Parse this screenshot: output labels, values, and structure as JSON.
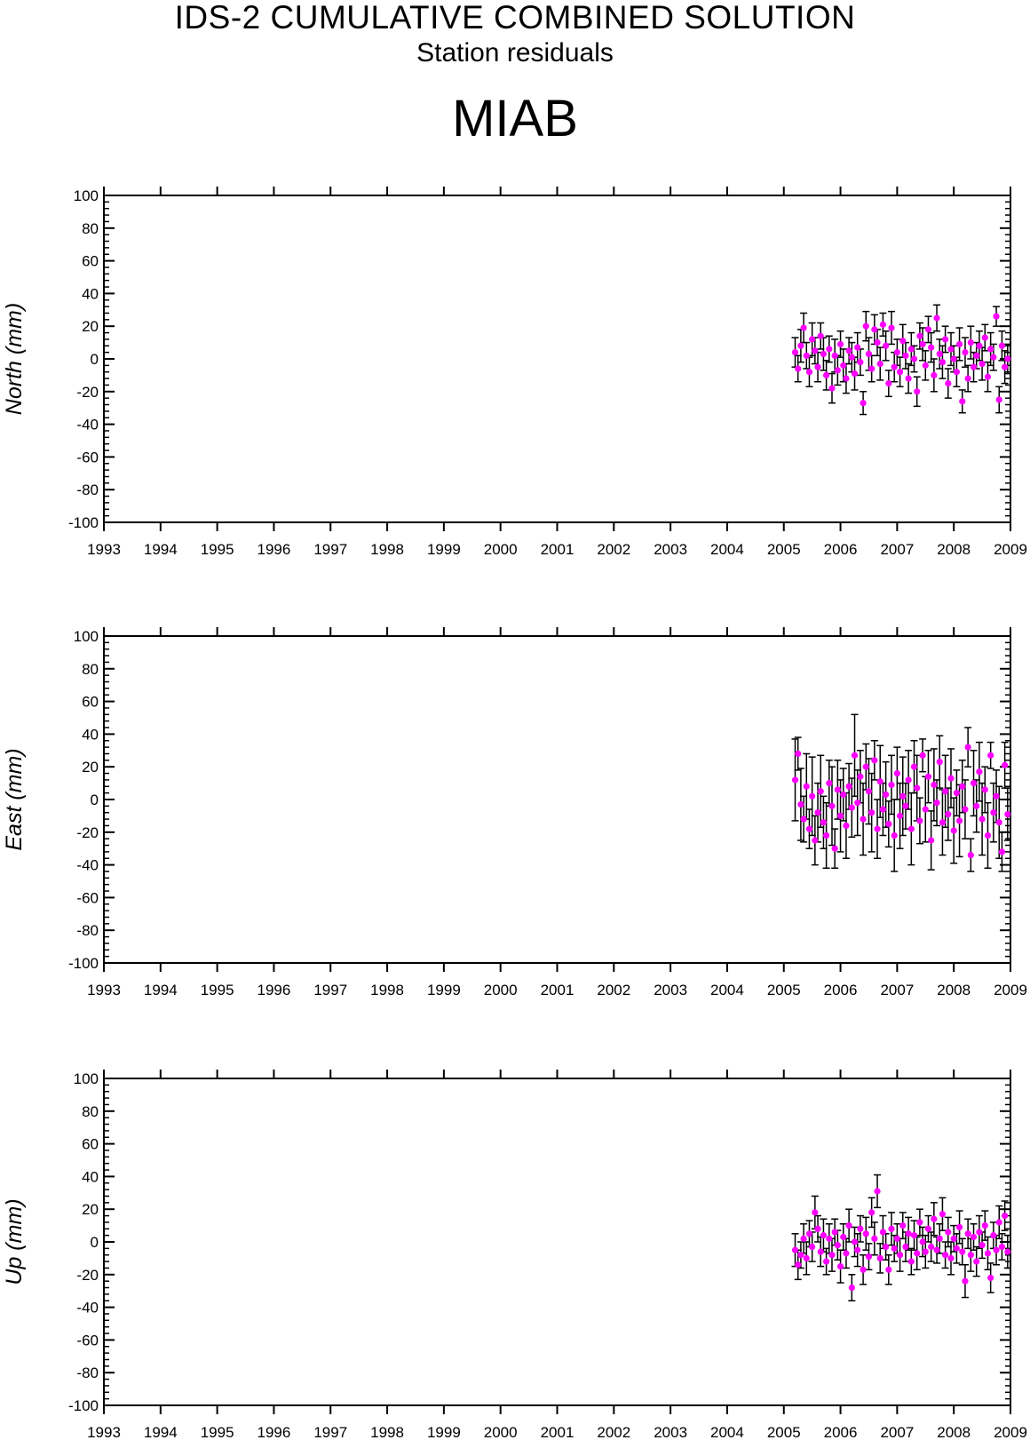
{
  "header": {
    "title": "IDS-2 CUMULATIVE COMBINED SOLUTION",
    "subtitle": "Station residuals",
    "station": "MIAB"
  },
  "colors": {
    "point": "#ff00ff",
    "errorbar": "#000000",
    "axis": "#000000"
  },
  "chart_data": [
    {
      "type": "scatter",
      "ylabel": "North (mm)",
      "ylim": [
        -100,
        100
      ],
      "xlim": [
        1993,
        2009
      ],
      "yticks": [
        "100",
        "80",
        "60",
        "40",
        "20",
        "0",
        "-20",
        "-40",
        "-60",
        "-80",
        "-100"
      ],
      "xticks": [
        "1993",
        "1994",
        "1995",
        "1996",
        "1997",
        "1998",
        "1999",
        "2000",
        "2001",
        "2002",
        "2003",
        "2004",
        "2005",
        "2006",
        "2007",
        "2008",
        "2009"
      ],
      "series": [
        {
          "errorbar": true,
          "x": [
            2005.2,
            2005.25,
            2005.3,
            2005.35,
            2005.4,
            2005.45,
            2005.5,
            2005.55,
            2005.6,
            2005.65,
            2005.7,
            2005.75,
            2005.8,
            2005.85,
            2005.9,
            2005.95,
            2006.0,
            2006.05,
            2006.1,
            2006.15,
            2006.2,
            2006.25,
            2006.3,
            2006.35,
            2006.4,
            2006.45,
            2006.5,
            2006.55,
            2006.6,
            2006.65,
            2006.7,
            2006.75,
            2006.8,
            2006.85,
            2006.9,
            2006.95,
            2007.0,
            2007.05,
            2007.1,
            2007.15,
            2007.2,
            2007.25,
            2007.3,
            2007.35,
            2007.4,
            2007.45,
            2007.5,
            2007.55,
            2007.6,
            2007.65,
            2007.7,
            2007.75,
            2007.8,
            2007.85,
            2007.9,
            2007.95,
            2008.0,
            2008.05,
            2008.1,
            2008.15,
            2008.2,
            2008.25,
            2008.3,
            2008.35,
            2008.4,
            2008.45,
            2008.5,
            2008.55,
            2008.6,
            2008.65,
            2008.7,
            2008.75,
            2008.8,
            2008.85,
            2008.9,
            2008.95
          ],
          "y": [
            4,
            -6,
            8,
            19,
            2,
            -8,
            12,
            5,
            -5,
            14,
            3,
            -10,
            6,
            -18,
            2,
            -7,
            9,
            -4,
            -12,
            5,
            1,
            -9,
            7,
            -2,
            -27,
            20,
            3,
            -6,
            18,
            10,
            -3,
            21,
            8,
            -15,
            19,
            -5,
            4,
            -8,
            11,
            2,
            -12,
            6,
            0,
            -20,
            14,
            9,
            -4,
            18,
            7,
            -10,
            25,
            3,
            -2,
            12,
            -15,
            6,
            0,
            -8,
            9,
            -26,
            4,
            -12,
            10,
            -5,
            2,
            8,
            -3,
            13,
            -11,
            6,
            1,
            26,
            -25,
            8,
            -5,
            0
          ],
          "err": [
            9,
            8,
            10,
            9,
            8,
            9,
            10,
            8,
            9,
            8,
            10,
            9,
            8,
            9,
            10,
            9,
            8,
            10,
            9,
            8,
            9,
            10,
            9,
            8,
            7,
            9,
            10,
            8,
            9,
            8,
            10,
            7,
            9,
            8,
            10,
            9,
            8,
            9,
            10,
            8,
            9,
            10,
            8,
            9,
            8,
            10,
            9,
            8,
            9,
            10,
            8,
            9,
            10,
            8,
            9,
            10,
            8,
            9,
            10,
            7,
            9,
            8,
            10,
            9,
            8,
            9,
            10,
            8,
            9,
            10,
            8,
            6,
            8,
            9,
            10,
            9
          ]
        }
      ]
    },
    {
      "type": "scatter",
      "ylabel": "East (mm)",
      "ylim": [
        -100,
        100
      ],
      "xlim": [
        1993,
        2009
      ],
      "yticks": [
        "100",
        "80",
        "60",
        "40",
        "20",
        "0",
        "-20",
        "-40",
        "-60",
        "-80",
        "-100"
      ],
      "xticks": [
        "1993",
        "1994",
        "1995",
        "1996",
        "1997",
        "1998",
        "1999",
        "2000",
        "2001",
        "2002",
        "2003",
        "2004",
        "2005",
        "2006",
        "2007",
        "2008",
        "2009"
      ],
      "series": [
        {
          "errorbar": true,
          "x": [
            2005.2,
            2005.25,
            2005.3,
            2005.35,
            2005.4,
            2005.45,
            2005.5,
            2005.55,
            2005.6,
            2005.65,
            2005.7,
            2005.75,
            2005.8,
            2005.85,
            2005.9,
            2005.95,
            2006.0,
            2006.05,
            2006.1,
            2006.15,
            2006.2,
            2006.25,
            2006.3,
            2006.35,
            2006.4,
            2006.45,
            2006.5,
            2006.55,
            2006.6,
            2006.65,
            2006.7,
            2006.75,
            2006.8,
            2006.85,
            2006.9,
            2006.95,
            2007.0,
            2007.05,
            2007.1,
            2007.15,
            2007.2,
            2007.25,
            2007.3,
            2007.35,
            2007.4,
            2007.45,
            2007.5,
            2007.55,
            2007.6,
            2007.65,
            2007.7,
            2007.75,
            2007.8,
            2007.85,
            2007.9,
            2007.95,
            2008.0,
            2008.05,
            2008.1,
            2008.15,
            2008.2,
            2008.25,
            2008.3,
            2008.35,
            2008.4,
            2008.45,
            2008.5,
            2008.55,
            2008.6,
            2008.65,
            2008.7,
            2008.75,
            2008.8,
            2008.85,
            2008.9,
            2008.95
          ],
          "y": [
            12,
            28,
            -3,
            -12,
            8,
            -18,
            2,
            -25,
            -8,
            5,
            -14,
            -22,
            10,
            -4,
            -30,
            6,
            -10,
            3,
            -16,
            8,
            -5,
            27,
            -2,
            14,
            -12,
            20,
            5,
            -8,
            24,
            -18,
            11,
            -6,
            3,
            -15,
            9,
            -22,
            16,
            -10,
            2,
            -4,
            12,
            -18,
            20,
            7,
            -13,
            27,
            -6,
            14,
            -25,
            9,
            -2,
            23,
            -14,
            5,
            -9,
            13,
            -19,
            4,
            -13,
            8,
            -6,
            32,
            -34,
            10,
            -4,
            17,
            -12,
            6,
            -22,
            27,
            -8,
            2,
            -14,
            -32,
            21,
            -9
          ],
          "err": [
            25,
            10,
            22,
            14,
            20,
            12,
            24,
            15,
            18,
            22,
            16,
            20,
            14,
            24,
            12,
            18,
            22,
            16,
            20,
            14,
            18,
            25,
            20,
            16,
            22,
            14,
            20,
            24,
            12,
            18,
            22,
            16,
            20,
            14,
            18,
            22,
            16,
            20,
            24,
            14,
            18,
            22,
            16,
            20,
            14,
            10,
            20,
            16,
            18,
            22,
            14,
            16,
            20,
            22,
            16,
            18,
            20,
            14,
            22,
            16,
            18,
            12,
            10,
            20,
            16,
            18,
            22,
            14,
            20,
            8,
            18,
            16,
            22,
            12,
            14,
            16
          ]
        }
      ]
    },
    {
      "type": "scatter",
      "ylabel": "Up (mm)",
      "ylim": [
        -100,
        100
      ],
      "xlim": [
        1993,
        2009
      ],
      "yticks": [
        "100",
        "80",
        "60",
        "40",
        "20",
        "0",
        "-20",
        "-40",
        "-60",
        "-80",
        "-100"
      ],
      "xticks": [
        "1993",
        "1994",
        "1995",
        "1996",
        "1997",
        "1998",
        "1999",
        "2000",
        "2001",
        "2002",
        "2003",
        "2004",
        "2005",
        "2006",
        "2007",
        "2008",
        "2009"
      ],
      "series": [
        {
          "errorbar": true,
          "x": [
            2005.2,
            2005.25,
            2005.3,
            2005.35,
            2005.4,
            2005.45,
            2005.5,
            2005.55,
            2005.6,
            2005.65,
            2005.7,
            2005.75,
            2005.8,
            2005.85,
            2005.9,
            2005.95,
            2006.0,
            2006.05,
            2006.1,
            2006.15,
            2006.2,
            2006.25,
            2006.3,
            2006.35,
            2006.4,
            2006.45,
            2006.5,
            2006.55,
            2006.6,
            2006.65,
            2006.7,
            2006.75,
            2006.8,
            2006.85,
            2006.9,
            2006.95,
            2007.0,
            2007.05,
            2007.1,
            2007.15,
            2007.2,
            2007.25,
            2007.3,
            2007.35,
            2007.4,
            2007.45,
            2007.5,
            2007.55,
            2007.6,
            2007.65,
            2007.7,
            2007.75,
            2007.8,
            2007.85,
            2007.9,
            2007.95,
            2008.0,
            2008.05,
            2008.1,
            2008.15,
            2008.2,
            2008.25,
            2008.3,
            2008.35,
            2008.4,
            2008.45,
            2008.5,
            2008.55,
            2008.6,
            2008.65,
            2008.7,
            2008.75,
            2008.8,
            2008.85,
            2008.9,
            2008.95
          ],
          "y": [
            -5,
            -14,
            -8,
            2,
            -10,
            5,
            -3,
            18,
            8,
            -6,
            4,
            -12,
            2,
            -8,
            6,
            -2,
            -15,
            3,
            -7,
            10,
            -28,
            0,
            -5,
            8,
            -17,
            5,
            -9,
            18,
            2,
            31,
            -10,
            6,
            -3,
            -17,
            8,
            -4,
            2,
            -8,
            10,
            -3,
            5,
            -12,
            4,
            -7,
            12,
            0,
            -6,
            8,
            -3,
            14,
            -5,
            2,
            17,
            -8,
            6,
            -10,
            2,
            -4,
            9,
            -6,
            -24,
            5,
            -8,
            3,
            -12,
            6,
            -2,
            10,
            -7,
            -22,
            4,
            -5,
            12,
            -3,
            16,
            -6
          ],
          "err": [
            10,
            9,
            8,
            9,
            10,
            8,
            9,
            10,
            8,
            9,
            10,
            8,
            9,
            10,
            8,
            9,
            10,
            8,
            9,
            10,
            8,
            9,
            10,
            8,
            9,
            10,
            8,
            9,
            10,
            10,
            9,
            10,
            8,
            9,
            10,
            8,
            9,
            10,
            8,
            9,
            10,
            8,
            9,
            10,
            8,
            9,
            10,
            8,
            9,
            10,
            8,
            9,
            10,
            8,
            9,
            10,
            8,
            9,
            10,
            8,
            10,
            9,
            10,
            8,
            9,
            10,
            8,
            9,
            10,
            9,
            8,
            9,
            10,
            8,
            9,
            10
          ]
        }
      ]
    }
  ]
}
